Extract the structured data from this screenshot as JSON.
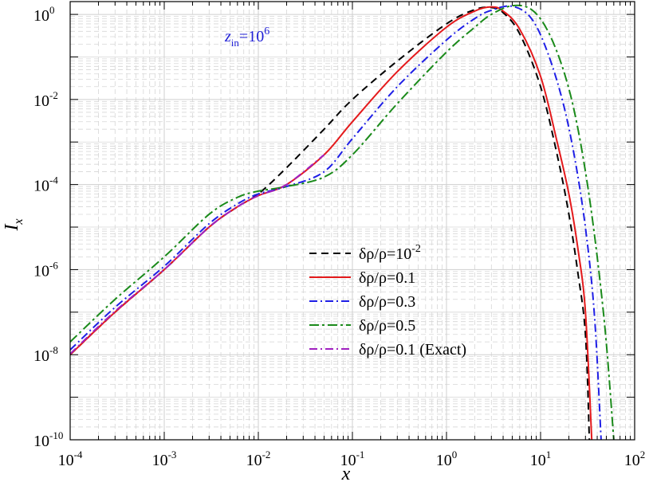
{
  "chart_data": {
    "type": "line",
    "xlabel": "x",
    "ylabel": "I",
    "ylabel_sub": "x",
    "xscale": "log",
    "yscale": "log",
    "xlim": [
      0.0001,
      100
    ],
    "ylim": [
      1e-10,
      2
    ],
    "grid": true,
    "legend_position": "center-right",
    "annotation": {
      "main": "z",
      "sub": "in",
      "rest": "=10",
      "sup": "6"
    },
    "xticks": [
      {
        "base": "10",
        "exp": "-4",
        "value": 0.0001
      },
      {
        "base": "10",
        "exp": "-3",
        "value": 0.001
      },
      {
        "base": "10",
        "exp": "-2",
        "value": 0.01
      },
      {
        "base": "10",
        "exp": "-1",
        "value": 0.1
      },
      {
        "base": "10",
        "exp": "0",
        "value": 1
      },
      {
        "base": "10",
        "exp": "1",
        "value": 10
      },
      {
        "base": "10",
        "exp": "2",
        "value": 100
      }
    ],
    "yticks": [
      {
        "base": "10",
        "exp": "-10",
        "value": 1e-10
      },
      {
        "base": "10",
        "exp": "-8",
        "value": 1e-08
      },
      {
        "base": "10",
        "exp": "-6",
        "value": 1e-06
      },
      {
        "base": "10",
        "exp": "-4",
        "value": 0.0001
      },
      {
        "base": "10",
        "exp": "-2",
        "value": 0.01
      },
      {
        "base": "10",
        "exp": "0",
        "value": 1
      }
    ],
    "series": [
      {
        "name": "δρ/ρ=10",
        "name_sup": "-2",
        "color": "#000000",
        "dash": "9,6",
        "x": [
          0.0001,
          0.0003,
          0.001,
          0.003,
          0.006,
          0.01,
          0.02,
          0.05,
          0.1,
          0.3,
          1,
          2,
          3,
          4,
          6,
          10,
          15,
          20,
          25,
          30,
          33
        ],
        "y": [
          1e-08,
          1e-07,
          1e-06,
          1e-05,
          3e-05,
          6e-05,
          0.00025,
          0.002,
          0.01,
          0.08,
          0.6,
          1.3,
          1.45,
          1.1,
          0.35,
          0.02,
          0.0005,
          2e-05,
          8e-07,
          3e-08,
          1e-10
        ]
      },
      {
        "name": "δρ/ρ=0.1",
        "name_sup": "",
        "color": "#e41a1c",
        "dash": "",
        "x": [
          0.0001,
          0.0003,
          0.001,
          0.003,
          0.006,
          0.01,
          0.02,
          0.05,
          0.1,
          0.3,
          1,
          2,
          3,
          4,
          6,
          10,
          15,
          20,
          25,
          30,
          35
        ],
        "y": [
          1e-08,
          1e-07,
          1e-06,
          1e-05,
          3e-05,
          5.5e-05,
          0.0001,
          0.0005,
          0.003,
          0.045,
          0.5,
          1.2,
          1.5,
          1.2,
          0.45,
          0.035,
          0.001,
          6e-05,
          3e-06,
          1e-07,
          1e-10
        ]
      },
      {
        "name": "δρ/ρ=0.3",
        "name_sup": "",
        "color": "#1f1fe6",
        "dash": "10,4,2,4",
        "x": [
          0.0001,
          0.0003,
          0.001,
          0.003,
          0.006,
          0.01,
          0.02,
          0.05,
          0.1,
          0.3,
          1,
          2,
          3,
          5,
          8,
          12,
          18,
          25,
          32,
          38,
          44
        ],
        "y": [
          1.3e-08,
          1.3e-07,
          1.2e-06,
          1.2e-05,
          3.5e-05,
          6e-05,
          9e-05,
          0.0002,
          0.0012,
          0.02,
          0.25,
          0.8,
          1.25,
          1.55,
          0.8,
          0.12,
          0.006,
          0.00015,
          3e-06,
          5e-08,
          1e-10
        ]
      },
      {
        "name": "δρ/ρ=0.5",
        "name_sup": "",
        "color": "#1a8a1a",
        "dash": "12,4,3,4",
        "x": [
          0.0001,
          0.0003,
          0.001,
          0.003,
          0.006,
          0.01,
          0.02,
          0.05,
          0.1,
          0.3,
          1,
          2,
          3,
          5,
          8,
          12,
          18,
          25,
          35,
          48,
          60
        ],
        "y": [
          2e-08,
          2e-07,
          2e-06,
          2e-05,
          5e-05,
          7e-05,
          9e-05,
          0.00015,
          0.0005,
          0.008,
          0.13,
          0.5,
          1.0,
          1.6,
          1.3,
          0.4,
          0.04,
          0.002,
          2e-05,
          5e-08,
          1e-10
        ]
      },
      {
        "name": "δρ/ρ=0.1 (Exact)",
        "name_sup": "",
        "color": "#a020c0",
        "dash": "10,4,2,4",
        "x": [
          0.0001,
          0.0003,
          0.001,
          0.003,
          0.006,
          0.01,
          0.02,
          0.05
        ],
        "y": [
          1.05e-08,
          1.05e-07,
          1e-06,
          1e-05,
          3e-05,
          5.5e-05,
          0.0001,
          0.0005
        ]
      }
    ]
  }
}
